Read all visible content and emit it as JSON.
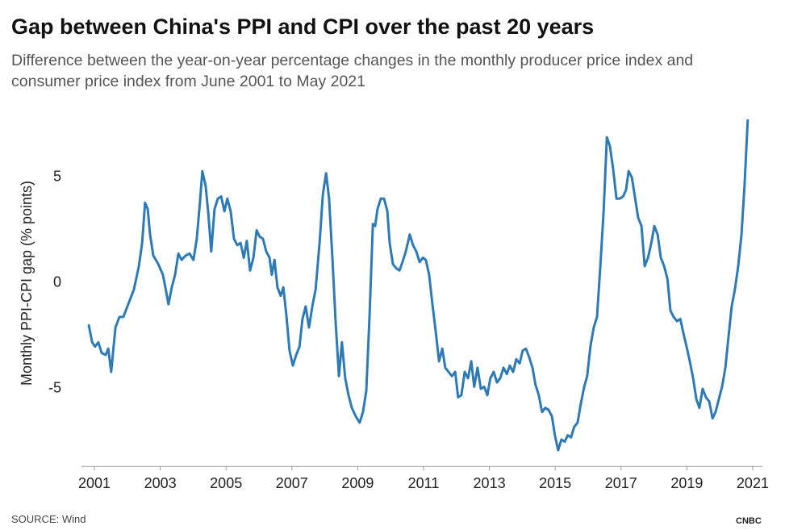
{
  "chart_data": {
    "type": "line",
    "title": "Gap between China's PPI and CPI over the past 20 years",
    "subtitle": "Difference between the year-on-year percentage changes in the monthly producer price index and consumer price index from June 2001 to May 2021",
    "y_label": "Monthly PPI-CPI gap (% points)",
    "source": "SOURCE: Wind",
    "logo": "CNBC",
    "xlim": [
      2000.6,
      2021.3
    ],
    "xticks": [
      2001,
      2003,
      2005,
      2007,
      2009,
      2011,
      2013,
      2015,
      2017,
      2019,
      2021
    ],
    "ylim": [
      -8.6,
      8.4
    ],
    "yticks": [
      -5,
      0,
      5
    ],
    "grid": false,
    "series": [
      {
        "name": "PPI-CPI gap",
        "color": "#2e7ab6",
        "x": [
          2000.83,
          2000.93,
          2001.02,
          2001.12,
          2001.22,
          2001.34,
          2001.42,
          2001.51,
          2001.64,
          2001.76,
          2001.88,
          2002.05,
          2002.2,
          2002.35,
          2002.45,
          2002.54,
          2002.62,
          2002.69,
          2002.79,
          2002.94,
          2003.08,
          2003.18,
          2003.25,
          2003.35,
          2003.45,
          2003.55,
          2003.65,
          2003.77,
          2003.89,
          2004.01,
          2004.11,
          2004.21,
          2004.28,
          2004.38,
          2004.46,
          2004.55,
          2004.65,
          2004.75,
          2004.85,
          2004.95,
          2005.04,
          2005.14,
          2005.24,
          2005.34,
          2005.44,
          2005.54,
          2005.63,
          2005.73,
          2005.83,
          2005.93,
          2006.02,
          2006.12,
          2006.22,
          2006.32,
          2006.39,
          2006.47,
          2006.56,
          2006.66,
          2006.74,
          2006.83,
          2006.93,
          2007.03,
          2007.13,
          2007.23,
          2007.32,
          2007.42,
          2007.52,
          2007.62,
          2007.72,
          2007.84,
          2007.94,
          2008.04,
          2008.13,
          2008.23,
          2008.33,
          2008.43,
          2008.52,
          2008.62,
          2008.72,
          2008.82,
          2008.94,
          2009.06,
          2009.16,
          2009.26,
          2009.36,
          2009.46,
          2009.53,
          2009.6,
          2009.7,
          2009.8,
          2009.9,
          2009.97,
          2010.07,
          2010.17,
          2010.27,
          2010.36,
          2010.46,
          2010.58,
          2010.68,
          2010.78,
          2010.88,
          2010.98,
          2011.07,
          2011.17,
          2011.27,
          2011.37,
          2011.47,
          2011.57,
          2011.66,
          2011.76,
          2011.86,
          2011.96,
          2012.05,
          2012.15,
          2012.25,
          2012.35,
          2012.45,
          2012.54,
          2012.64,
          2012.74,
          2012.84,
          2012.94,
          2013.03,
          2013.13,
          2013.23,
          2013.33,
          2013.43,
          2013.53,
          2013.62,
          2013.72,
          2013.82,
          2013.92,
          2014.01,
          2014.11,
          2014.21,
          2014.31,
          2014.4,
          2014.5,
          2014.6,
          2014.7,
          2014.8,
          2014.9,
          2014.99,
          2015.09,
          2015.19,
          2015.29,
          2015.38,
          2015.48,
          2015.58,
          2015.68,
          2015.78,
          2015.88,
          2015.97,
          2016.07,
          2016.17,
          2016.27,
          2016.37,
          2016.47,
          2016.57,
          2016.66,
          2016.76,
          2016.86,
          2016.96,
          2017.06,
          2017.15,
          2017.23,
          2017.33,
          2017.43,
          2017.52,
          2017.62,
          2017.72,
          2017.82,
          2017.92,
          2018.01,
          2018.11,
          2018.21,
          2018.31,
          2018.41,
          2018.5,
          2018.6,
          2018.7,
          2018.8,
          2018.9,
          2018.99,
          2019.09,
          2019.19,
          2019.29,
          2019.38,
          2019.48,
          2019.58,
          2019.68,
          2019.78,
          2019.87,
          2019.97,
          2020.07,
          2020.17,
          2020.26,
          2020.36,
          2020.46,
          2020.56,
          2020.66,
          2020.75,
          2020.85
        ],
        "values": [
          -2.0,
          -2.8,
          -3.0,
          -2.8,
          -3.3,
          -3.4,
          -3.1,
          -4.2,
          -2.1,
          -1.6,
          -1.6,
          -0.9,
          -0.3,
          0.8,
          1.9,
          3.8,
          3.5,
          2.3,
          1.3,
          0.9,
          0.4,
          -0.4,
          -1.0,
          -0.2,
          0.4,
          1.4,
          1.1,
          1.3,
          1.4,
          1.1,
          2.1,
          3.9,
          5.3,
          4.6,
          3.3,
          1.5,
          3.5,
          4.0,
          4.1,
          3.4,
          4.0,
          3.4,
          2.1,
          1.8,
          1.9,
          1.2,
          2.0,
          0.6,
          1.2,
          2.5,
          2.2,
          2.1,
          1.5,
          1.2,
          0.4,
          1.1,
          -0.2,
          -0.6,
          -0.2,
          -1.5,
          -3.2,
          -3.9,
          -3.4,
          -3.0,
          -1.7,
          -1.1,
          -2.1,
          -1.1,
          -0.3,
          1.9,
          4.2,
          5.2,
          4.0,
          1.2,
          -1.9,
          -4.4,
          -2.8,
          -4.5,
          -5.3,
          -5.9,
          -6.3,
          -6.6,
          -6.1,
          -5.1,
          -1.5,
          2.8,
          2.7,
          3.5,
          4.0,
          4.0,
          3.4,
          1.9,
          0.9,
          0.7,
          0.6,
          1.0,
          1.5,
          2.3,
          1.8,
          1.5,
          1.0,
          1.2,
          1.1,
          0.4,
          -1.0,
          -2.3,
          -3.7,
          -3.1,
          -4.0,
          -4.2,
          -4.4,
          -4.2,
          -5.4,
          -5.3,
          -4.2,
          -4.5,
          -3.7,
          -4.9,
          -4.0,
          -5.0,
          -4.9,
          -5.3,
          -4.5,
          -4.2,
          -4.7,
          -4.5,
          -4.0,
          -4.3,
          -3.9,
          -4.2,
          -3.6,
          -3.8,
          -3.2,
          -3.1,
          -3.5,
          -4.0,
          -4.8,
          -5.3,
          -6.1,
          -5.9,
          -6.0,
          -6.3,
          -7.2,
          -7.9,
          -7.4,
          -7.5,
          -7.2,
          -7.3,
          -6.8,
          -6.6,
          -5.7,
          -4.9,
          -4.4,
          -3.0,
          -2.1,
          -1.6,
          0.8,
          3.4,
          6.9,
          6.5,
          5.4,
          4.0,
          4.0,
          4.1,
          4.4,
          5.3,
          5.0,
          4.0,
          3.1,
          2.7,
          0.8,
          1.2,
          1.9,
          2.7,
          2.3,
          1.2,
          0.8,
          0.2,
          -1.3,
          -1.6,
          -1.8,
          -1.7,
          -2.4,
          -3.0,
          -3.7,
          -4.5,
          -5.5,
          -5.9,
          -5.0,
          -5.4,
          -5.6,
          -6.4,
          -6.1,
          -5.5,
          -4.9,
          -4.0,
          -2.6,
          -1.1,
          -0.3,
          0.8,
          2.3,
          4.6,
          7.7
        ]
      }
    ]
  }
}
